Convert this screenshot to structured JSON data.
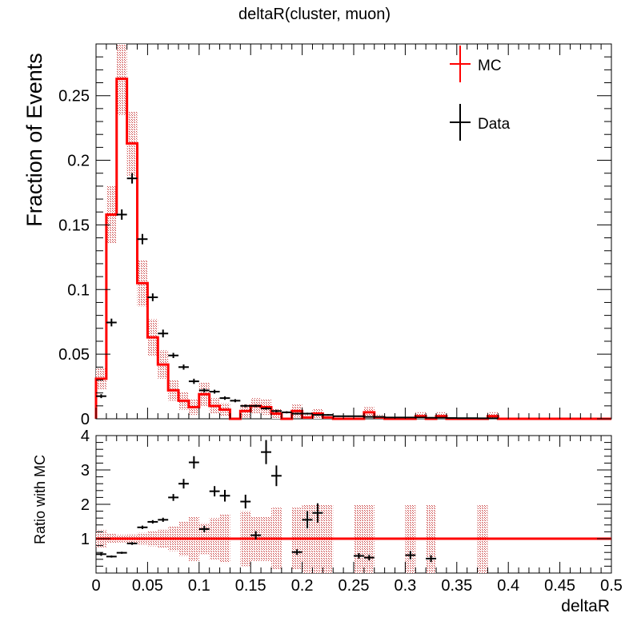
{
  "chart_data": [
    {
      "type": "histogram",
      "title": "deltaR(cluster, muon)",
      "ylabel": "Fraction of Events",
      "xlim": [
        0,
        0.5
      ],
      "ylim": [
        0,
        0.29
      ],
      "yticks": [
        0,
        0.05,
        0.1,
        0.15,
        0.2,
        0.25
      ],
      "ytick_labels": [
        "0",
        "0.05",
        "0.1",
        "0.15",
        "0.2",
        "0.25"
      ],
      "bin_width": 0.01,
      "legend": {
        "placement": "top-right",
        "entries": [
          "MC",
          "Data"
        ]
      },
      "colors": {
        "mc": "#ff0000",
        "band": "#c83c3c",
        "data": "#000000"
      },
      "series": [
        {
          "name": "MC",
          "style": "step",
          "values": [
            0.031,
            0.158,
            0.263,
            0.213,
            0.105,
            0.063,
            0.042,
            0.022,
            0.014,
            0.009,
            0.019,
            0.01,
            0.007,
            0.0,
            0.006,
            0.01,
            0.009,
            0.004,
            0.0,
            0.006,
            0.001,
            0.004,
            0.001,
            0.0,
            0.0,
            0.0,
            0.005,
            0.001,
            0.0,
            0.0,
            0.0,
            0.002,
            0.0,
            0.002,
            0.0,
            0.0,
            0.0,
            0.0,
            0.002,
            0.0,
            0.0,
            0.0,
            0.0,
            0.0,
            0.0,
            0.0,
            0.0,
            0.0,
            0.0,
            0.0
          ],
          "band_half_width": [
            0.008,
            0.022,
            0.028,
            0.025,
            0.018,
            0.014,
            0.011,
            0.008,
            0.007,
            0.006,
            0.009,
            0.006,
            0.005,
            0.0,
            0.005,
            0.006,
            0.006,
            0.004,
            0.0,
            0.005,
            0.002,
            0.004,
            0.002,
            0.0,
            0.0,
            0.0,
            0.004,
            0.002,
            0.0,
            0.0,
            0.0,
            0.003,
            0.0,
            0.003,
            0.0,
            0.0,
            0.0,
            0.0,
            0.003,
            0.0,
            0.0,
            0.0,
            0.0,
            0.0,
            0.0,
            0.0,
            0.0,
            0.0,
            0.0,
            0.0
          ]
        },
        {
          "name": "Data",
          "style": "errorbar",
          "points": [
            {
              "x": 0.005,
              "y": 0.0175,
              "err": 0.0015
            },
            {
              "x": 0.015,
              "y": 0.0745,
              "err": 0.003
            },
            {
              "x": 0.025,
              "y": 0.158,
              "err": 0.004
            },
            {
              "x": 0.035,
              "y": 0.186,
              "err": 0.004
            },
            {
              "x": 0.045,
              "y": 0.139,
              "err": 0.004
            },
            {
              "x": 0.055,
              "y": 0.094,
              "err": 0.003
            },
            {
              "x": 0.065,
              "y": 0.066,
              "err": 0.003
            },
            {
              "x": 0.075,
              "y": 0.049,
              "err": 0.002
            },
            {
              "x": 0.085,
              "y": 0.04,
              "err": 0.002
            },
            {
              "x": 0.095,
              "y": 0.029,
              "err": 0.002
            },
            {
              "x": 0.105,
              "y": 0.022,
              "err": 0.0015
            },
            {
              "x": 0.115,
              "y": 0.021,
              "err": 0.0015
            },
            {
              "x": 0.125,
              "y": 0.016,
              "err": 0.0013
            },
            {
              "x": 0.135,
              "y": 0.014,
              "err": 0.0012
            },
            {
              "x": 0.145,
              "y": 0.01,
              "err": 0.001
            },
            {
              "x": 0.155,
              "y": 0.01,
              "err": 0.001
            },
            {
              "x": 0.165,
              "y": 0.008,
              "err": 0.001
            },
            {
              "x": 0.175,
              "y": 0.006,
              "err": 0.001
            },
            {
              "x": 0.185,
              "y": 0.005,
              "err": 0.0008
            },
            {
              "x": 0.195,
              "y": 0.004,
              "err": 0.0007
            },
            {
              "x": 0.205,
              "y": 0.004,
              "err": 0.0007
            },
            {
              "x": 0.215,
              "y": 0.003,
              "err": 0.0006
            },
            {
              "x": 0.225,
              "y": 0.003,
              "err": 0.0006
            },
            {
              "x": 0.235,
              "y": 0.002,
              "err": 0.0005
            },
            {
              "x": 0.245,
              "y": 0.002,
              "err": 0.0005
            },
            {
              "x": 0.255,
              "y": 0.002,
              "err": 0.0005
            },
            {
              "x": 0.265,
              "y": 0.0015,
              "err": 0.0004
            },
            {
              "x": 0.275,
              "y": 0.0015,
              "err": 0.0004
            },
            {
              "x": 0.285,
              "y": 0.001,
              "err": 0.0004
            },
            {
              "x": 0.295,
              "y": 0.001,
              "err": 0.0004
            },
            {
              "x": 0.305,
              "y": 0.001,
              "err": 0.0004
            },
            {
              "x": 0.315,
              "y": 0.001,
              "err": 0.0003
            },
            {
              "x": 0.325,
              "y": 0.0008,
              "err": 0.0003
            },
            {
              "x": 0.335,
              "y": 0.0008,
              "err": 0.0003
            },
            {
              "x": 0.345,
              "y": 0.0006,
              "err": 0.0003
            },
            {
              "x": 0.355,
              "y": 0.0005,
              "err": 0.0003
            },
            {
              "x": 0.365,
              "y": 0.0005,
              "err": 0.0003
            },
            {
              "x": 0.375,
              "y": 0.0004,
              "err": 0.0003
            },
            {
              "x": 0.385,
              "y": 0.0004,
              "err": 0.0003
            }
          ]
        }
      ]
    },
    {
      "type": "ratio",
      "ylabel": "Ratio with MC",
      "xlabel": "deltaR",
      "xlim": [
        0,
        0.5
      ],
      "ylim": [
        0,
        4
      ],
      "yticks": [
        1,
        2,
        3,
        4
      ],
      "ytick_labels": [
        "1",
        "2",
        "3",
        "4"
      ],
      "xticks": [
        0,
        0.05,
        0.1,
        0.15,
        0.2,
        0.25,
        0.3,
        0.35,
        0.4,
        0.45,
        0.5
      ],
      "xtick_labels": [
        "0",
        "0.05",
        "0.1",
        "0.15",
        "0.2",
        "0.25",
        "0.3",
        "0.35",
        "0.4",
        "0.45",
        "0.5"
      ],
      "reference_line": 1,
      "band": [
        {
          "x0": 0.0,
          "x1": 0.01,
          "lo": 0.75,
          "hi": 1.25
        },
        {
          "x0": 0.01,
          "x1": 0.02,
          "lo": 0.86,
          "hi": 1.14
        },
        {
          "x0": 0.02,
          "x1": 0.03,
          "lo": 0.89,
          "hi": 1.11
        },
        {
          "x0": 0.03,
          "x1": 0.04,
          "lo": 0.88,
          "hi": 1.12
        },
        {
          "x0": 0.04,
          "x1": 0.05,
          "lo": 0.83,
          "hi": 1.17
        },
        {
          "x0": 0.05,
          "x1": 0.06,
          "lo": 0.78,
          "hi": 1.22
        },
        {
          "x0": 0.06,
          "x1": 0.07,
          "lo": 0.74,
          "hi": 1.26
        },
        {
          "x0": 0.07,
          "x1": 0.08,
          "lo": 0.64,
          "hi": 1.36
        },
        {
          "x0": 0.08,
          "x1": 0.09,
          "lo": 0.5,
          "hi": 1.5
        },
        {
          "x0": 0.09,
          "x1": 0.1,
          "lo": 0.35,
          "hi": 1.65
        },
        {
          "x0": 0.1,
          "x1": 0.11,
          "lo": 0.55,
          "hi": 1.45
        },
        {
          "x0": 0.11,
          "x1": 0.12,
          "lo": 0.4,
          "hi": 1.6
        },
        {
          "x0": 0.12,
          "x1": 0.13,
          "lo": 0.3,
          "hi": 1.7
        },
        {
          "x0": 0.14,
          "x1": 0.15,
          "lo": 0.2,
          "hi": 1.8
        },
        {
          "x0": 0.15,
          "x1": 0.16,
          "lo": 0.35,
          "hi": 1.65
        },
        {
          "x0": 0.16,
          "x1": 0.17,
          "lo": 0.35,
          "hi": 1.65
        },
        {
          "x0": 0.17,
          "x1": 0.18,
          "lo": 0.1,
          "hi": 1.9
        },
        {
          "x0": 0.19,
          "x1": 0.2,
          "lo": 0.1,
          "hi": 1.9
        },
        {
          "x0": 0.2,
          "x1": 0.21,
          "lo": 0.0,
          "hi": 2.0
        },
        {
          "x0": 0.21,
          "x1": 0.22,
          "lo": 0.0,
          "hi": 2.0
        },
        {
          "x0": 0.22,
          "x1": 0.23,
          "lo": 0.0,
          "hi": 2.0
        },
        {
          "x0": 0.25,
          "x1": 0.26,
          "lo": 0.0,
          "hi": 2.0
        },
        {
          "x0": 0.26,
          "x1": 0.27,
          "lo": 0.0,
          "hi": 2.0
        },
        {
          "x0": 0.3,
          "x1": 0.31,
          "lo": 0.0,
          "hi": 2.0
        },
        {
          "x0": 0.32,
          "x1": 0.33,
          "lo": 0.0,
          "hi": 2.0
        },
        {
          "x0": 0.37,
          "x1": 0.38,
          "lo": 0.0,
          "hi": 2.0
        }
      ],
      "points": [
        {
          "x": 0.005,
          "y": 0.55,
          "err": 0.05
        },
        {
          "x": 0.015,
          "y": 0.48,
          "err": 0.03
        },
        {
          "x": 0.025,
          "y": 0.59,
          "err": 0.03
        },
        {
          "x": 0.035,
          "y": 0.86,
          "err": 0.04
        },
        {
          "x": 0.045,
          "y": 1.33,
          "err": 0.05
        },
        {
          "x": 0.055,
          "y": 1.49,
          "err": 0.05
        },
        {
          "x": 0.065,
          "y": 1.55,
          "err": 0.06
        },
        {
          "x": 0.075,
          "y": 2.2,
          "err": 0.1
        },
        {
          "x": 0.085,
          "y": 2.6,
          "err": 0.14
        },
        {
          "x": 0.095,
          "y": 3.22,
          "err": 0.18
        },
        {
          "x": 0.105,
          "y": 1.28,
          "err": 0.09
        },
        {
          "x": 0.115,
          "y": 2.38,
          "err": 0.15
        },
        {
          "x": 0.125,
          "y": 2.25,
          "err": 0.17
        },
        {
          "x": 0.145,
          "y": 2.08,
          "err": 0.2
        },
        {
          "x": 0.155,
          "y": 1.1,
          "err": 0.12
        },
        {
          "x": 0.165,
          "y": 3.52,
          "err": 0.35
        },
        {
          "x": 0.175,
          "y": 2.83,
          "err": 0.3
        },
        {
          "x": 0.195,
          "y": 0.61,
          "err": 0.08
        },
        {
          "x": 0.205,
          "y": 1.55,
          "err": 0.25
        },
        {
          "x": 0.215,
          "y": 1.75,
          "err": 0.28
        },
        {
          "x": 0.255,
          "y": 0.5,
          "err": 0.08
        },
        {
          "x": 0.265,
          "y": 0.45,
          "err": 0.08
        },
        {
          "x": 0.305,
          "y": 0.52,
          "err": 0.12
        },
        {
          "x": 0.325,
          "y": 0.42,
          "err": 0.1
        }
      ]
    }
  ]
}
